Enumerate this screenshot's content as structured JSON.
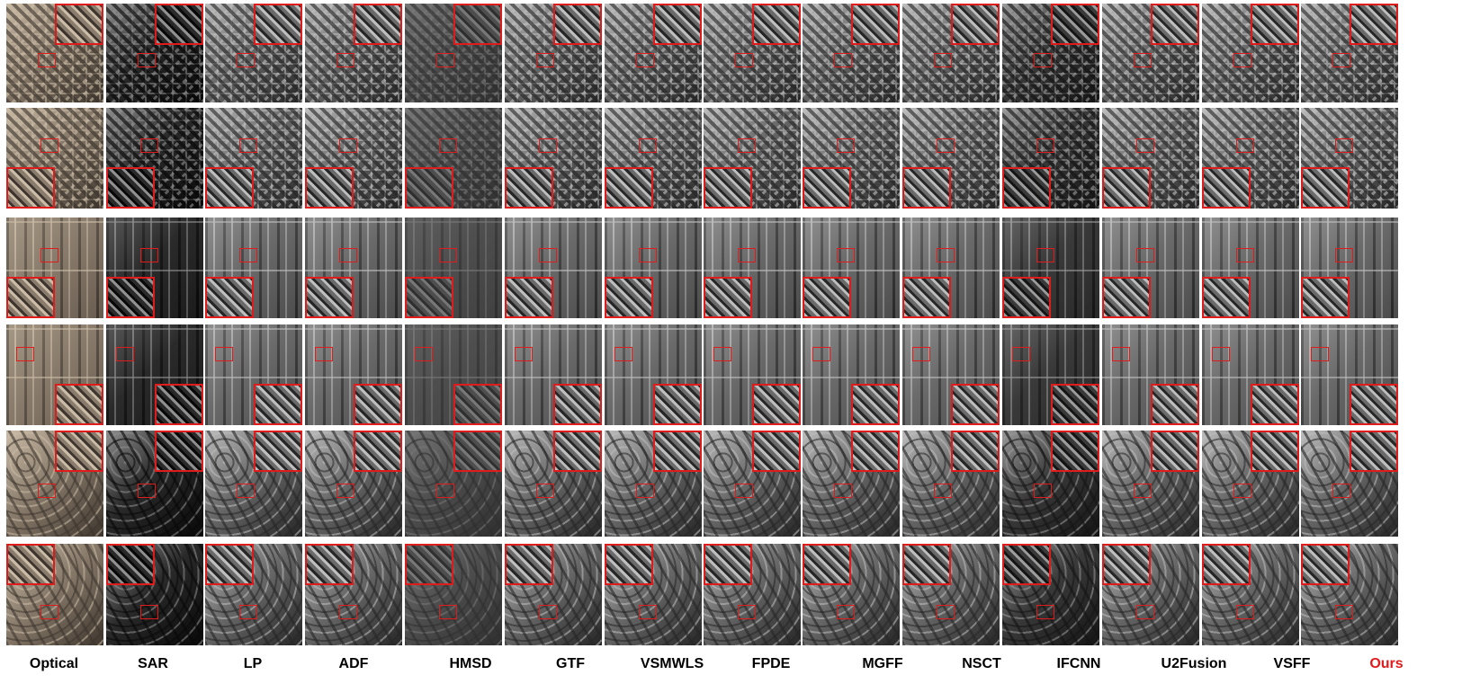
{
  "columns": [
    {
      "label": "Optical",
      "highlight": false,
      "kind": "optical"
    },
    {
      "label": "SAR",
      "highlight": false,
      "kind": "sar"
    },
    {
      "label": "LP",
      "highlight": false,
      "kind": "fused"
    },
    {
      "label": "ADF",
      "highlight": false,
      "kind": "fused"
    },
    {
      "label": "HMSD",
      "highlight": false,
      "kind": "dim"
    },
    {
      "label": "GTF",
      "highlight": false,
      "kind": "fused"
    },
    {
      "label": "VSMWLS",
      "highlight": false,
      "kind": "fused"
    },
    {
      "label": "FPDE",
      "highlight": false,
      "kind": "fused"
    },
    {
      "label": "MGFF",
      "highlight": false,
      "kind": "fused"
    },
    {
      "label": "NSCT",
      "highlight": false,
      "kind": "fused"
    },
    {
      "label": "IFCNN",
      "highlight": false,
      "kind": "dark"
    },
    {
      "label": "U2Fusion",
      "highlight": false,
      "kind": "fused"
    },
    {
      "label": "VSFF",
      "highlight": false,
      "kind": "fused"
    },
    {
      "label": "Ours",
      "highlight": true,
      "kind": "fused"
    }
  ],
  "rows": [
    {
      "scene": "village-dense",
      "zoom_corner": "top-right"
    },
    {
      "scene": "village-greenhouse",
      "zoom_corner": "bottom-left"
    },
    {
      "scene": "farmland-striped",
      "zoom_corner": "bottom-left"
    },
    {
      "scene": "farmland-plots",
      "zoom_corner": "bottom-right"
    },
    {
      "scene": "terraced-hills",
      "zoom_corner": "top-right"
    },
    {
      "scene": "river-terraces",
      "zoom_corner": "top-left"
    }
  ],
  "colors": {
    "frame": "#e01b1b",
    "label_highlight": "#e01b1b",
    "label": "#000000"
  }
}
